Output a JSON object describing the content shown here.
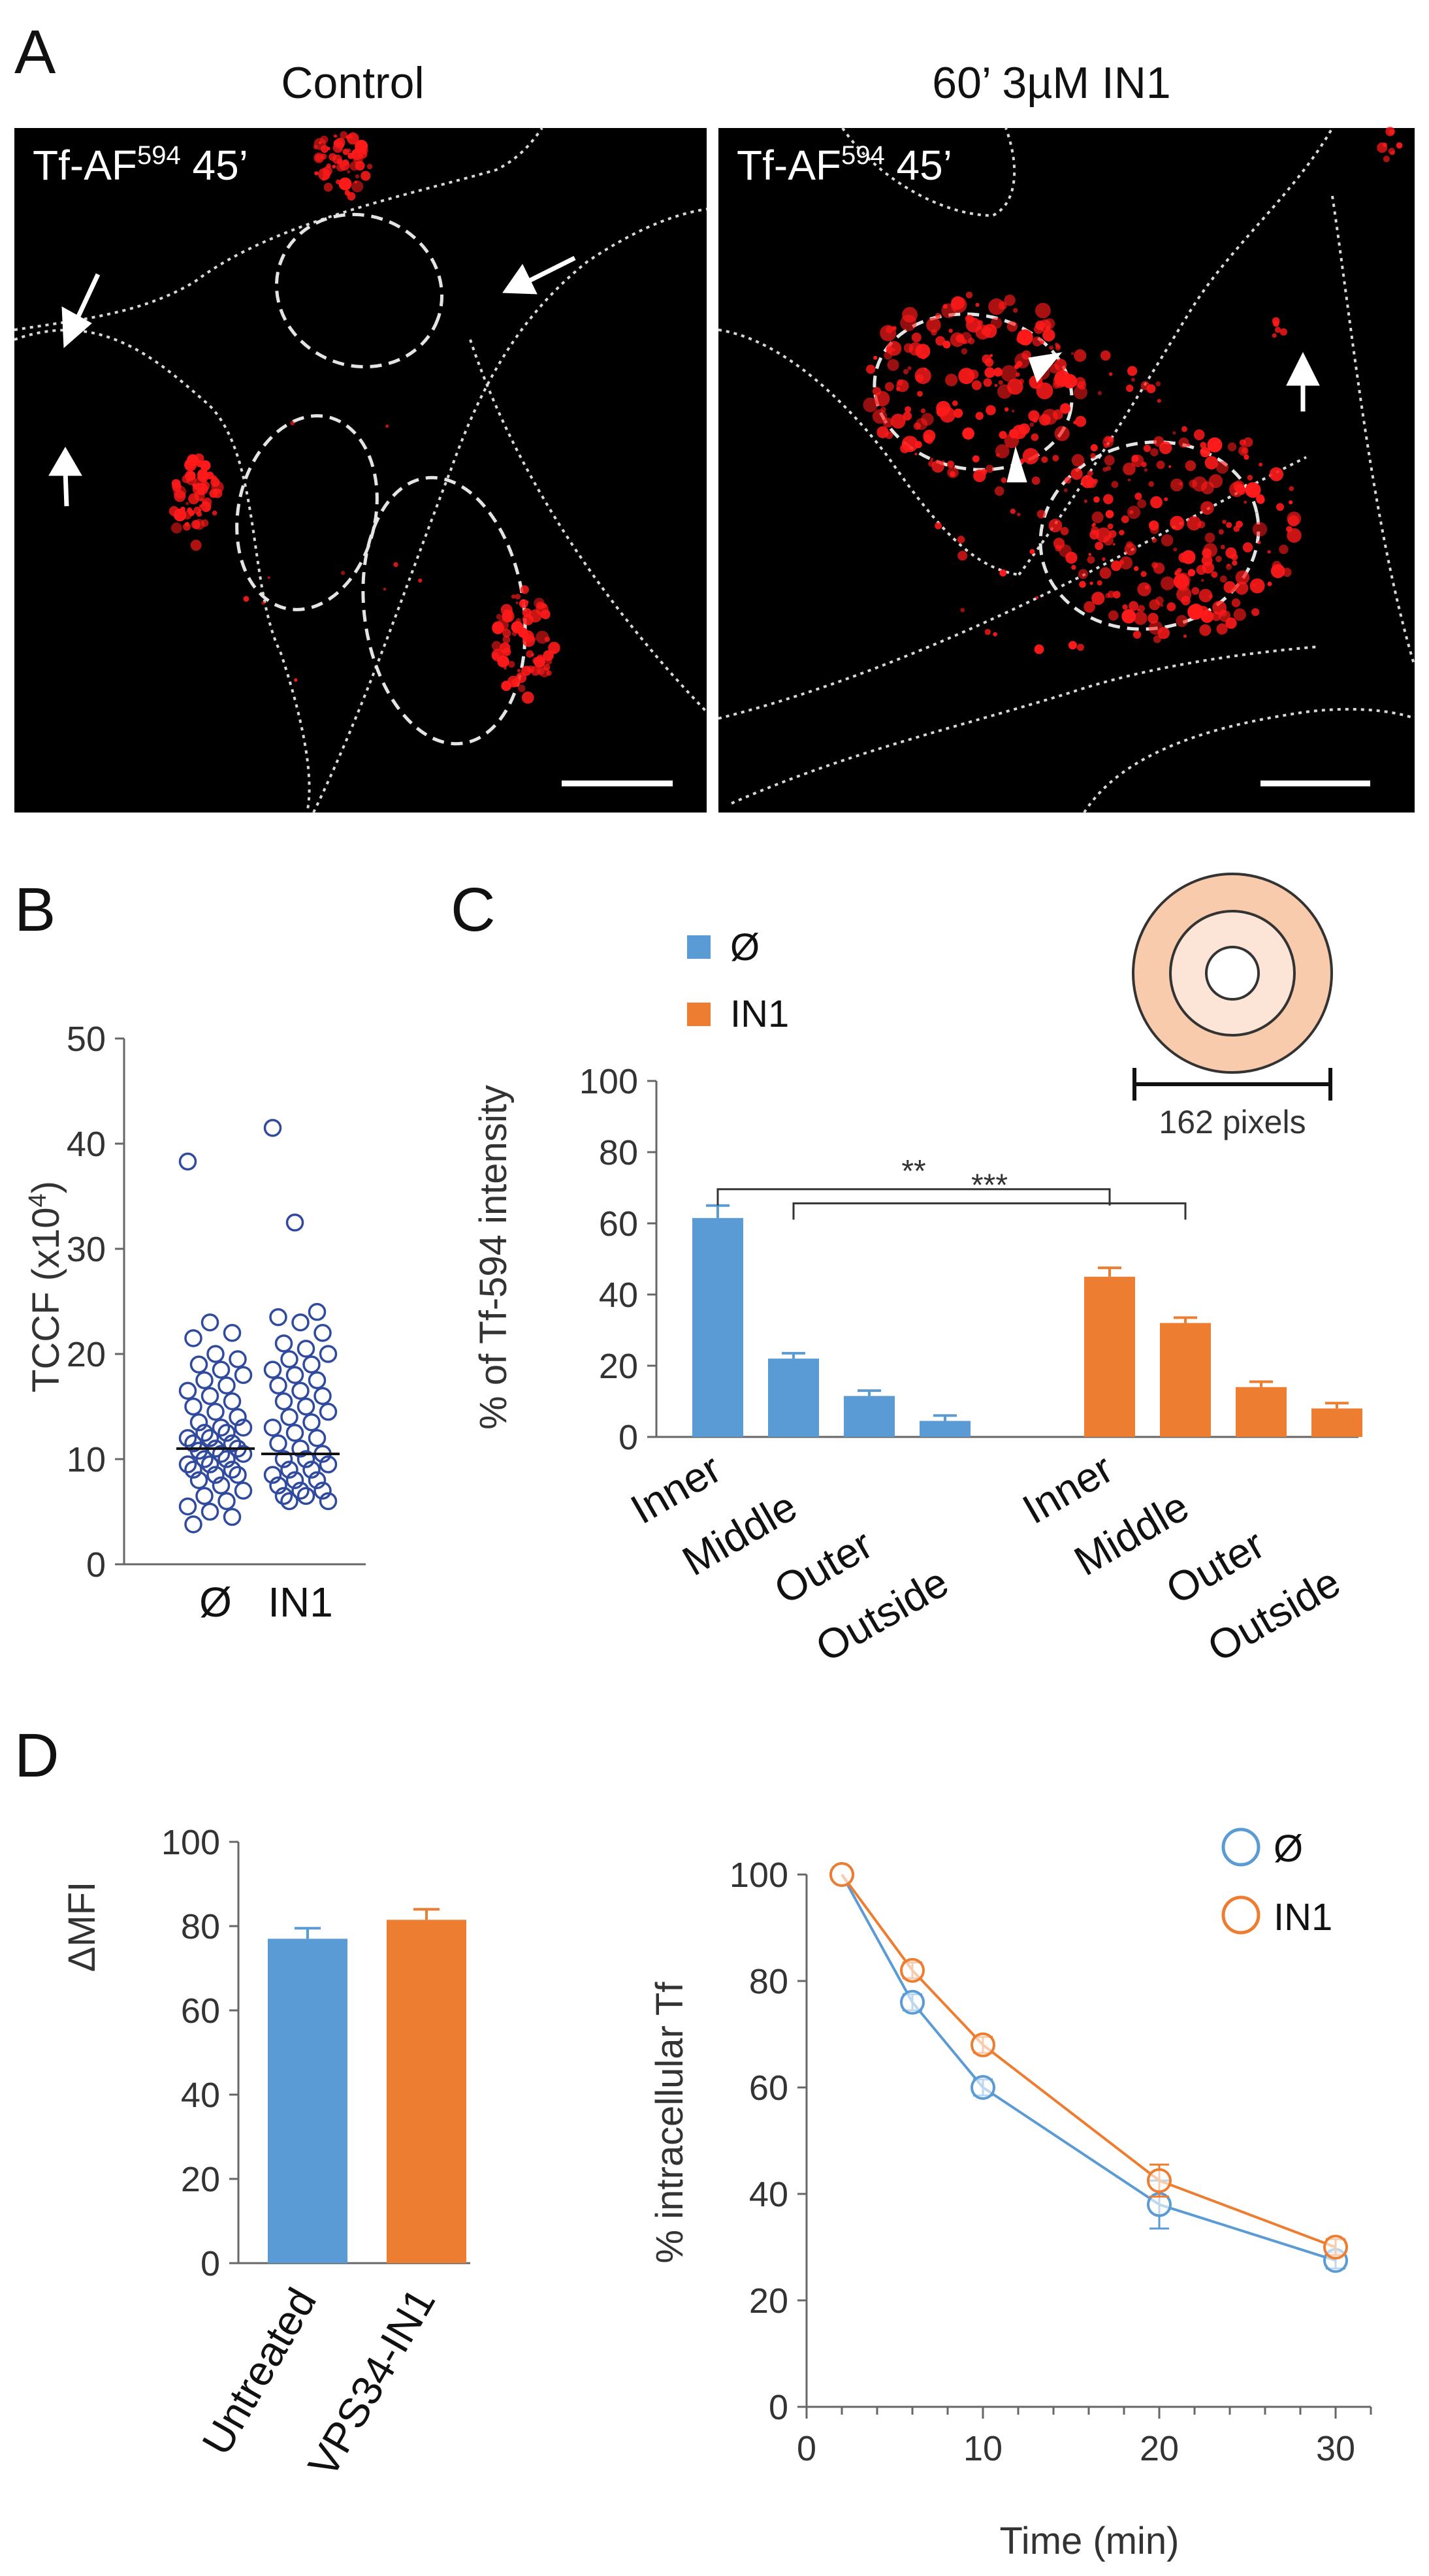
{
  "figure": {
    "panels": [
      "A",
      "B",
      "C",
      "D"
    ],
    "panel_a": {
      "headings": [
        "Control",
        "60’ 3µM IN1"
      ],
      "image_label": {
        "main": "Tf-AF",
        "sup": "594",
        "tail": " 45’"
      }
    },
    "colors": {
      "control": "#5B9BD5",
      "in1": "#ED7D31",
      "scatter": "#2F4A9E",
      "cell_signal": "#FF1A1A"
    }
  },
  "chart_data": [
    {
      "id": "B",
      "type": "scatter",
      "ylabel_main": "TCCF (x10",
      "ylabel_sup": "4",
      "ylabel_close": ")",
      "ylim": [
        0,
        50
      ],
      "yticks": [
        "0",
        "10",
        "20",
        "30",
        "40",
        "50"
      ],
      "categories": [
        "Ø",
        "IN1"
      ],
      "series": [
        {
          "name": "Ø",
          "median": 11,
          "values": [
            38.3,
            23,
            22,
            21.5,
            20,
            19.5,
            19,
            18.5,
            18,
            17.5,
            17,
            16.5,
            16,
            15.5,
            15,
            14.5,
            14,
            13.5,
            13,
            13,
            12.5,
            12.5,
            12,
            12,
            11.5,
            11.5,
            11,
            11,
            10.8,
            10.5,
            10.5,
            10,
            10,
            9.5,
            9.5,
            9,
            9,
            8.5,
            8.5,
            8,
            7.5,
            7,
            6.5,
            6,
            5.5,
            5,
            4.5,
            3.8
          ]
        },
        {
          "name": "IN1",
          "median": 10.5,
          "values": [
            41.5,
            32.5,
            24,
            23.5,
            23,
            22,
            21,
            20.5,
            20,
            19.5,
            19,
            18.5,
            18,
            17.5,
            17,
            16.5,
            16,
            15.5,
            15,
            14.5,
            14,
            13.5,
            13,
            12.5,
            12,
            11.5,
            11,
            10.5,
            10,
            10,
            9.5,
            9,
            9,
            8.5,
            8,
            8,
            7.5,
            7,
            7,
            6.5,
            6.5,
            6,
            6
          ]
        }
      ]
    },
    {
      "id": "C",
      "type": "bar",
      "ylabel": "% of Tf-594 intensity",
      "ylim": [
        0,
        100
      ],
      "yticks": [
        "0",
        "20",
        "40",
        "60",
        "80",
        "100"
      ],
      "categories": [
        "Inner",
        "Middle",
        "Outer",
        "Outside"
      ],
      "series": [
        {
          "name": "Ø",
          "values": [
            61.5,
            22,
            11.5,
            4.5
          ],
          "errors": [
            3.5,
            1.5,
            1.5,
            1.5
          ]
        },
        {
          "name": "IN1",
          "values": [
            45,
            32,
            14,
            8
          ],
          "errors": [
            2.5,
            1.5,
            1.5,
            1.5
          ]
        }
      ],
      "significance": [
        "**",
        "***"
      ],
      "inset_label": "162 pixels"
    },
    {
      "id": "D-left",
      "type": "bar",
      "ylabel": "ΔMFI",
      "ylim": [
        0,
        100
      ],
      "yticks": [
        "0",
        "20",
        "40",
        "60",
        "80",
        "100"
      ],
      "categories": [
        "Untreated",
        "VPS34-IN1"
      ],
      "values": [
        77,
        81.5
      ],
      "errors": [
        2.5,
        2.5
      ]
    },
    {
      "id": "D-right",
      "type": "line",
      "xlabel": "Time (min)",
      "ylabel": "% intracellular Tf",
      "xlim": [
        0,
        32
      ],
      "ylim": [
        0,
        100
      ],
      "xticks": [
        "0",
        "10",
        "20",
        "30"
      ],
      "yticks": [
        "0",
        "20",
        "40",
        "60",
        "80",
        "100"
      ],
      "x": [
        2,
        6,
        10,
        20,
        30
      ],
      "series": [
        {
          "name": "Ø",
          "values": [
            100,
            76,
            60,
            38,
            27.5
          ],
          "errors": [
            0,
            1.5,
            1.5,
            4.5,
            1.5
          ]
        },
        {
          "name": "IN1",
          "values": [
            100,
            82,
            68,
            42.5,
            30
          ],
          "errors": [
            0,
            1.5,
            1.5,
            3,
            1.5
          ]
        }
      ]
    }
  ]
}
